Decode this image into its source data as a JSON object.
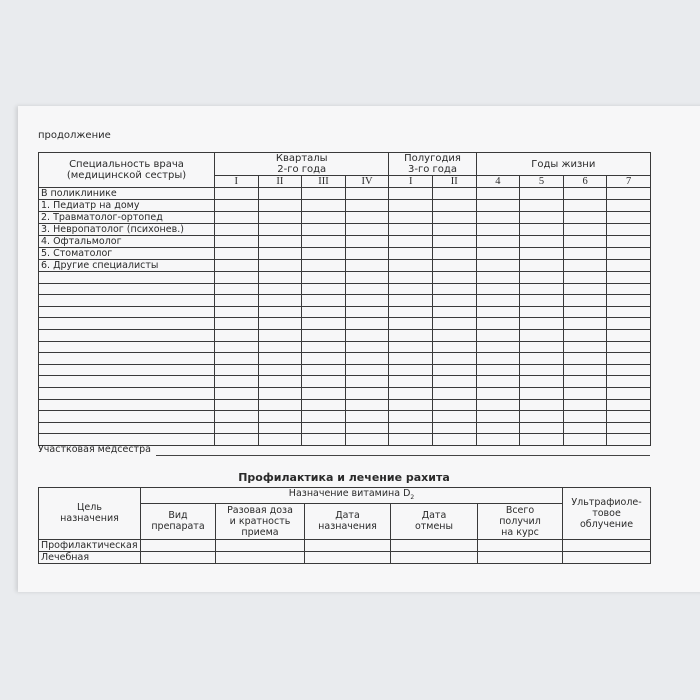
{
  "continuation_label": "продолжение",
  "visits_table": {
    "specialty_header": [
      "Специальность врача",
      "(медицинской сестры)"
    ],
    "quarters_header": [
      "Кварталы",
      "2-го года"
    ],
    "halves_header": [
      "Полугодия",
      "3-го года"
    ],
    "years_header": "Годы жизни",
    "quarter_cols": [
      "I",
      "II",
      "III",
      "IV"
    ],
    "half_cols": [
      "I",
      "II"
    ],
    "year_cols": [
      "4",
      "5",
      "6",
      "7"
    ],
    "rows": [
      "В поликлинике",
      "1. Педиатр на дому",
      "2. Травматолог-ортопед",
      "3. Невропатолог (психонев.)",
      "4. Офтальмолог",
      "5. Стоматолог",
      "6. Другие специалисты",
      "",
      "",
      "",
      "",
      "",
      "",
      "",
      "",
      "",
      "",
      "",
      "",
      "",
      "",
      ""
    ]
  },
  "nurse_label": "Участковая медсестра",
  "rickets": {
    "title": "Профилактика и лечение рахита",
    "purpose_header": [
      "Цель",
      "назначения"
    ],
    "vitamin_header": "Назначение витамина D",
    "vitamin_subscript": "2",
    "cols": [
      [
        "Вид",
        "препарата"
      ],
      [
        "Разовая доза",
        "и кратность",
        "приема"
      ],
      [
        "Дата",
        "назначения"
      ],
      [
        "Дата",
        "отмены"
      ],
      [
        "Всего",
        "получил",
        "на курс"
      ]
    ],
    "uv_header": [
      "Ультрафиоле-",
      "товое",
      "облучение"
    ],
    "rows": [
      "Профилактическая",
      "Лечебная"
    ]
  }
}
